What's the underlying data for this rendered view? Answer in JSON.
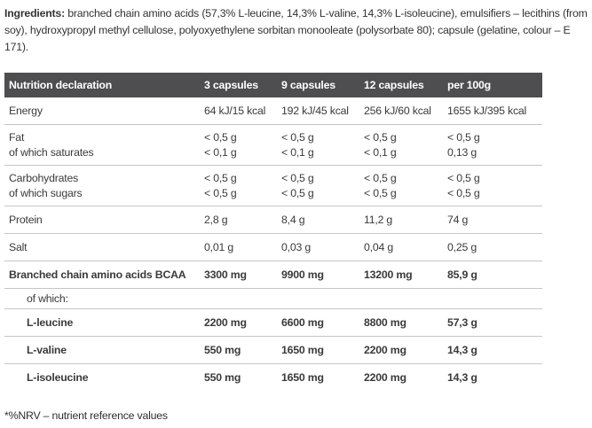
{
  "ingredients": {
    "label": "Ingredients:",
    "text": " branched chain amino acids (57,3% L-leucine, 14,3% L-valine, 14,3% L-isoleucine), emulsifiers – lecithins (from soy), hydroxypropyl methyl cellulose, polyoxyethylene sorbitan monooleate (polysorbate 80); capsule (gelatine, colour – E 171)."
  },
  "table": {
    "headers": [
      "Nutrition declaration",
      "3 capsules",
      "9 capsules",
      "12 capsules",
      "per 100g"
    ],
    "rows": [
      {
        "label": "Energy",
        "values": [
          "64 kJ/15 kcal",
          "192 kJ/45 kcal",
          "256 kJ/60 kcal",
          "1655 kJ/395 kcal"
        ]
      },
      {
        "label": "Fat",
        "sub_label": "of which saturates",
        "values": [
          "< 0,5 g",
          "< 0,5 g",
          "< 0,5 g",
          "< 0,5 g"
        ],
        "sub_values": [
          "< 0,1 g",
          "< 0,1 g",
          "< 0,1 g",
          "0,13 g"
        ]
      },
      {
        "label": "Carbohydrates",
        "sub_label": "of which sugars",
        "values": [
          "< 0,5 g",
          "< 0,5 g",
          "< 0,5 g",
          "< 0,5 g"
        ],
        "sub_values": [
          "< 0,5 g",
          "< 0,5 g",
          "< 0,5 g",
          "< 0,5 g"
        ]
      },
      {
        "label": "Protein",
        "values": [
          "2,8 g",
          "8,4 g",
          "11,2 g",
          "74 g"
        ]
      },
      {
        "label": "Salt",
        "values": [
          "0,01 g",
          "0,03 g",
          "0,04 g",
          "0,25 g"
        ]
      },
      {
        "label": "Branched chain amino acids BCAA",
        "bold": true,
        "values": [
          "3300 mg",
          "9900 mg",
          "13200 mg",
          "85,9 g"
        ]
      },
      {
        "label": "of which:",
        "indent": true,
        "subhead": true,
        "values": [
          "",
          "",
          "",
          ""
        ]
      },
      {
        "label": "L-leucine",
        "bold": true,
        "indent": true,
        "values": [
          "2200 mg",
          "6600 mg",
          "8800 mg",
          "57,3 g"
        ]
      },
      {
        "label": "L-valine",
        "bold": true,
        "indent": true,
        "values": [
          "550 mg",
          "1650 mg",
          "2200 mg",
          "14,3 g"
        ]
      },
      {
        "label": "L-isoleucine",
        "bold": true,
        "indent": true,
        "values": [
          "550 mg",
          "1650 mg",
          "2200 mg",
          "14,3 g"
        ]
      }
    ]
  },
  "footnote": "*%NRV – nutrient reference values",
  "colors": {
    "header_bg": "#4e4e50",
    "header_text": "#ffffff",
    "body_text": "#3a3a3a",
    "divider": "#c6c6c6"
  }
}
